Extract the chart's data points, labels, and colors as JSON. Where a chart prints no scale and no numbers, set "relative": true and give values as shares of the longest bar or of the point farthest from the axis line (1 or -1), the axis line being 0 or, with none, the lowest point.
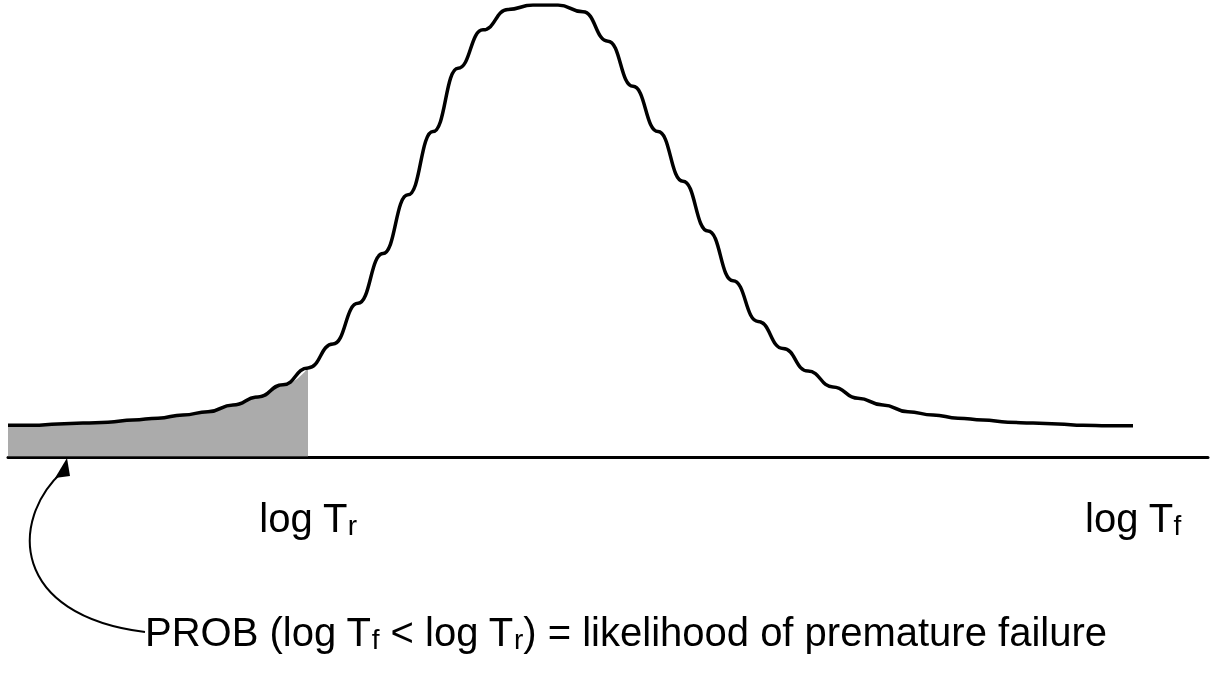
{
  "chart_data": {
    "type": "line",
    "relative": true,
    "categories": [
      null,
      null,
      null,
      null,
      null,
      null,
      null,
      null,
      null,
      null,
      null,
      null,
      "log T$_{r}$",
      null,
      null,
      null,
      null,
      null,
      null,
      null,
      null,
      null,
      null,
      null,
      null,
      null,
      null,
      null,
      null,
      null,
      null,
      null,
      null,
      null,
      null,
      null,
      null,
      null,
      null,
      null,
      null,
      null,
      null,
      null,
      null,
      "log T$_{f}$",
      null,
      null,
      null
    ],
    "series": [
      {
        "type": "area",
        "color": "#666666",
        "values": [
          0.07,
          0.07,
          0.073,
          0.075,
          0.077,
          0.082,
          0.086,
          0.093,
          0.1,
          0.115,
          0.133,
          0.16,
          0.197,
          null,
          null,
          null,
          null,
          null,
          null,
          null,
          null,
          null,
          null,
          null,
          null,
          null,
          null,
          null,
          null,
          null,
          null,
          null,
          null,
          null,
          null,
          null,
          null,
          null,
          null,
          null,
          null,
          null,
          null,
          null,
          null,
          null,
          null,
          null,
          null
        ]
      },
      {
        "type": "line",
        "color": "#000000",
        "values": [
          0.07,
          0.07,
          0.073,
          0.075,
          0.077,
          0.082,
          0.086,
          0.093,
          0.1,
          0.115,
          0.133,
          0.16,
          0.197,
          0.25,
          0.34,
          0.45,
          0.58,
          0.72,
          0.86,
          0.945,
          0.99,
          1.0,
          1.0,
          0.985,
          0.92,
          0.82,
          0.72,
          0.61,
          0.5,
          0.39,
          0.3,
          0.24,
          0.19,
          0.155,
          0.13,
          0.115,
          0.1,
          0.093,
          0.086,
          0.082,
          0.077,
          0.075,
          0.073,
          0.07,
          0.069,
          0.069,
          null,
          null,
          null
        ]
      }
    ],
    "annotations": [
      "PROB (log T$_{f}$ < log T$_{r}$) = likelihood of premature failure"
    ],
    "marker": "none"
  }
}
